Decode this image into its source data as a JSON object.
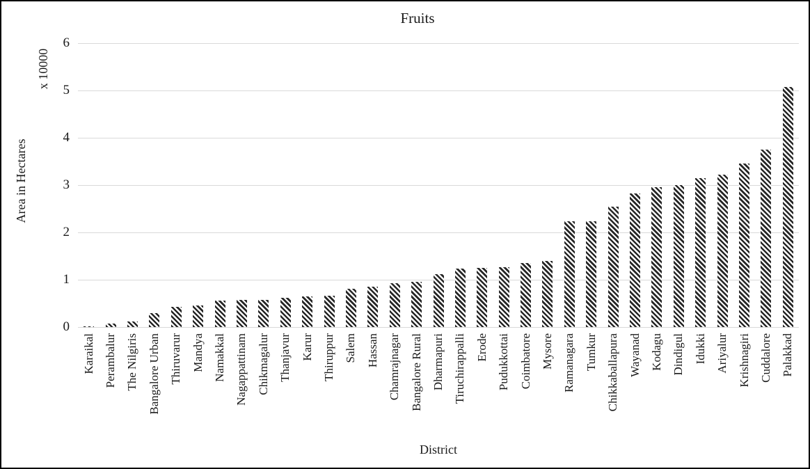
{
  "chart_data": {
    "type": "bar",
    "title": "Fruits",
    "xlabel": "District",
    "ylabel": "Area in Hectares",
    "y_multiplier_label": "x 10000",
    "categories": [
      "Karaikal",
      "Perambalur",
      "The Nilgiris",
      "Bangalore Urban",
      "Thiruvarur",
      "Mandya",
      "Namakkal",
      "Nagappattinam",
      "Chikmagalur",
      "Thanjavur",
      "Karur",
      "Thiruppur",
      "Salem",
      "Hassan",
      "Chamrajnagar",
      "Bangalore Rural",
      "Dharmapuri",
      "Tiruchirappalli",
      "Erode",
      "Pudukkottai",
      "Coimbatore",
      "Mysore",
      "Ramanagara",
      "Tumkur",
      "Chikkaballapura",
      "Wayanad",
      "Kodagu",
      "Dindigul",
      "Idukki",
      "Ariyalur",
      "Krishnagiri",
      "Cuddalore",
      "Palakkad"
    ],
    "values": [
      0.01,
      0.07,
      0.12,
      0.3,
      0.43,
      0.46,
      0.56,
      0.58,
      0.58,
      0.62,
      0.64,
      0.66,
      0.81,
      0.85,
      0.93,
      0.96,
      1.12,
      1.23,
      1.25,
      1.27,
      1.35,
      1.39,
      2.24,
      2.24,
      2.54,
      2.82,
      2.95,
      3.0,
      3.15,
      3.22,
      3.46,
      3.75,
      5.07
    ],
    "ylim": [
      0,
      6
    ],
    "yticks": [
      0,
      1,
      2,
      3,
      4,
      5,
      6
    ],
    "grid": true,
    "legend_position": "none",
    "bar_style": "diagonal-hatch",
    "colors": {
      "hatch": "#262626",
      "background": "#ffffff",
      "gridline": "#d9d9d9",
      "text": "#1a1a1a",
      "border": "#000000"
    }
  }
}
